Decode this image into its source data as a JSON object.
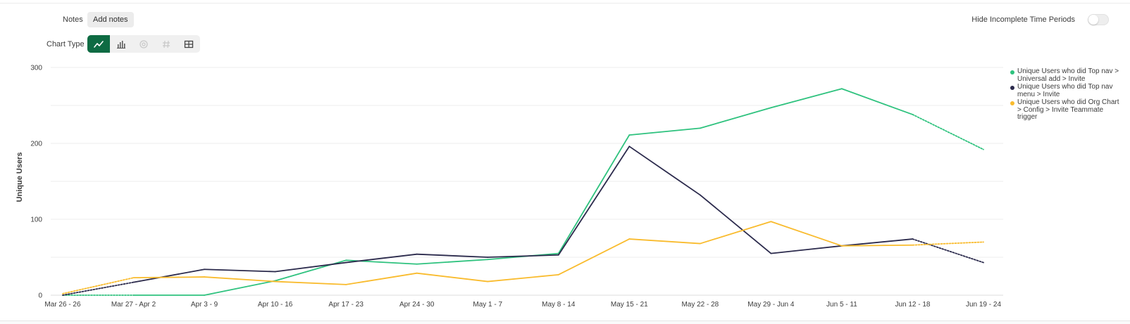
{
  "header": {
    "notes_label": "Notes",
    "add_notes_label": "Add notes",
    "hide_incomplete_label": "Hide Incomplete Time Periods",
    "hide_incomplete_on": false,
    "chart_type_label": "Chart Type",
    "chart_type_buttons": [
      {
        "icon": "line-chart-icon",
        "active": true,
        "disabled": false
      },
      {
        "icon": "bar-chart-icon",
        "active": false,
        "disabled": false
      },
      {
        "icon": "pie-chart-icon",
        "active": false,
        "disabled": true
      },
      {
        "icon": "hash-icon",
        "active": false,
        "disabled": true
      },
      {
        "icon": "table-icon",
        "active": false,
        "disabled": false
      }
    ]
  },
  "colors": {
    "accent": "#0e6b43",
    "green": "#2ec27e",
    "navy": "#2b2a4c",
    "yellow": "#f9bb2d",
    "grid": "#ececec"
  },
  "chart_data": {
    "type": "line",
    "ylabel": "Unique Users",
    "ylim": [
      0,
      300
    ],
    "yticks": [
      0,
      100,
      200,
      300
    ],
    "grid": true,
    "legend_position": "right",
    "categories": [
      "Mar 26 - 26",
      "Mar 27 - Apr 2",
      "Apr 3 - 9",
      "Apr 10 - 16",
      "Apr 17 - 23",
      "Apr 24 - 30",
      "May 1 - 7",
      "May 8 - 14",
      "May 15 - 21",
      "May 22 - 28",
      "May 29 - Jun 4",
      "Jun 5 - 11",
      "Jun 12 - 18",
      "Jun 19 - 24"
    ],
    "series": [
      {
        "name": "Unique Users who did Top nav > Universal add > Invite",
        "color": "#2ec27e",
        "values": [
          0,
          0,
          0,
          19,
          46,
          41,
          47,
          55,
          211,
          220,
          247,
          272,
          238,
          192
        ],
        "incomplete_segments": [
          0,
          12
        ]
      },
      {
        "name": "Unique Users who did Top nav menu > Invite",
        "color": "#2b2a4c",
        "values": [
          0,
          17,
          34,
          31,
          43,
          54,
          50,
          53,
          196,
          132,
          55,
          65,
          74,
          43
        ],
        "incomplete_segments": [
          0,
          12
        ]
      },
      {
        "name": "Unique Users who did Org Chart > Config > Invite Teammate trigger",
        "color": "#f9bb2d",
        "values": [
          2,
          23,
          24,
          18,
          14,
          29,
          18,
          27,
          74,
          68,
          97,
          65,
          66,
          70
        ],
        "incomplete_segments": [
          0,
          12
        ]
      }
    ]
  }
}
